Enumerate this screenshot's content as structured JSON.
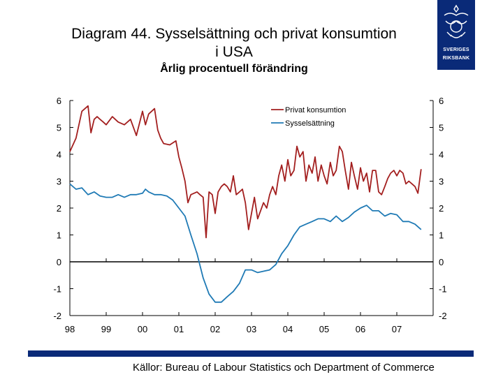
{
  "title_line1": "Diagram 44. Sysselsättning och privat konsumtion",
  "title_line2": "i USA",
  "subtitle": "Årlig procentuell förändring",
  "source": "Källor: Bureau of Labour Statistics och Department of Commerce",
  "logo": {
    "line1": "SVERIGES",
    "line2": "RIKSBANK",
    "color": "#0a2a78"
  },
  "chart_data": {
    "type": "line",
    "title": "Diagram 44. Sysselsättning och privat konsumtion i USA",
    "subtitle": "Årlig procentuell förändring",
    "xlabel": "",
    "ylabel": "",
    "xlim": [
      1998.0,
      2008.0
    ],
    "ylim": [
      -2,
      6
    ],
    "yticks": [
      6,
      5,
      4,
      3,
      2,
      1,
      0,
      -1,
      -2
    ],
    "ytick_labels": [
      "6",
      "5",
      "4",
      "3",
      "2",
      "1",
      "0",
      "-1",
      "-2"
    ],
    "xtick_labels": [
      "98",
      "99",
      "00",
      "01",
      "02",
      "03",
      "04",
      "05",
      "06",
      "07"
    ],
    "legend": {
      "position": "top-right"
    },
    "series": [
      {
        "name": "Privat konsumtion",
        "color": "#a31f1f",
        "x": [
          1998.0,
          1998.17,
          1998.33,
          1998.5,
          1998.58,
          1998.67,
          1998.75,
          1998.83,
          1998.92,
          1999.0,
          1999.17,
          1999.33,
          1999.5,
          1999.67,
          1999.83,
          2000.0,
          2000.08,
          2000.17,
          2000.33,
          2000.42,
          2000.5,
          2000.58,
          2000.75,
          2000.92,
          2001.0,
          2001.08,
          2001.17,
          2001.25,
          2001.33,
          2001.5,
          2001.58,
          2001.67,
          2001.75,
          2001.83,
          2001.92,
          2002.0,
          2002.08,
          2002.17,
          2002.25,
          2002.33,
          2002.42,
          2002.5,
          2002.58,
          2002.67,
          2002.75,
          2002.83,
          2002.92,
          2003.0,
          2003.08,
          2003.17,
          2003.25,
          2003.33,
          2003.42,
          2003.5,
          2003.58,
          2003.67,
          2003.75,
          2003.83,
          2003.92,
          2004.0,
          2004.08,
          2004.17,
          2004.25,
          2004.33,
          2004.42,
          2004.5,
          2004.58,
          2004.67,
          2004.75,
          2004.83,
          2004.92,
          2005.0,
          2005.08,
          2005.17,
          2005.25,
          2005.33,
          2005.42,
          2005.5,
          2005.58,
          2005.67,
          2005.75,
          2005.83,
          2005.92,
          2006.0,
          2006.08,
          2006.17,
          2006.25,
          2006.33,
          2006.42,
          2006.5,
          2006.58,
          2006.67,
          2006.75,
          2006.83,
          2006.92,
          2007.0,
          2007.08,
          2007.17,
          2007.25,
          2007.33,
          2007.42,
          2007.5,
          2007.58,
          2007.67
        ],
        "values": [
          4.1,
          4.6,
          5.6,
          5.8,
          4.8,
          5.3,
          5.4,
          5.3,
          5.2,
          5.1,
          5.4,
          5.2,
          5.1,
          5.3,
          4.7,
          5.6,
          5.1,
          5.5,
          5.7,
          4.9,
          4.6,
          4.4,
          4.35,
          4.5,
          3.9,
          3.5,
          3.0,
          2.2,
          2.5,
          2.6,
          2.5,
          2.4,
          0.9,
          2.6,
          2.5,
          1.8,
          2.6,
          2.8,
          2.9,
          2.8,
          2.6,
          3.2,
          2.5,
          2.6,
          2.7,
          2.2,
          1.2,
          1.8,
          2.4,
          1.6,
          1.9,
          2.2,
          2.0,
          2.5,
          2.8,
          2.5,
          3.2,
          3.6,
          3.0,
          3.8,
          3.2,
          3.4,
          4.3,
          3.9,
          4.1,
          3.0,
          3.6,
          3.3,
          3.9,
          3.0,
          3.6,
          3.2,
          2.9,
          3.7,
          3.2,
          3.4,
          4.3,
          4.1,
          3.4,
          2.7,
          3.7,
          3.2,
          2.7,
          3.5,
          3.0,
          3.3,
          2.6,
          3.4,
          3.4,
          2.6,
          2.5,
          2.8,
          3.1,
          3.3,
          3.4,
          3.2,
          3.4,
          3.3,
          2.9,
          3.0,
          2.9,
          2.8,
          2.55,
          3.45
        ]
      },
      {
        "name": "Sysselsättning",
        "color": "#1f7ab5",
        "x": [
          1998.0,
          1998.17,
          1998.33,
          1998.5,
          1998.67,
          1998.83,
          1999.0,
          1999.17,
          1999.33,
          1999.5,
          1999.67,
          1999.83,
          2000.0,
          2000.08,
          2000.17,
          2000.33,
          2000.5,
          2000.67,
          2000.83,
          2001.0,
          2001.17,
          2001.33,
          2001.5,
          2001.67,
          2001.83,
          2002.0,
          2002.17,
          2002.33,
          2002.5,
          2002.67,
          2002.83,
          2003.0,
          2003.17,
          2003.33,
          2003.5,
          2003.67,
          2003.83,
          2004.0,
          2004.17,
          2004.33,
          2004.5,
          2004.67,
          2004.83,
          2005.0,
          2005.17,
          2005.33,
          2005.5,
          2005.67,
          2005.83,
          2006.0,
          2006.17,
          2006.33,
          2006.5,
          2006.67,
          2006.83,
          2007.0,
          2007.17,
          2007.33,
          2007.5,
          2007.67
        ],
        "values": [
          2.9,
          2.7,
          2.75,
          2.5,
          2.6,
          2.45,
          2.4,
          2.4,
          2.5,
          2.4,
          2.5,
          2.5,
          2.55,
          2.7,
          2.6,
          2.5,
          2.5,
          2.45,
          2.3,
          2.0,
          1.7,
          1.0,
          0.3,
          -0.6,
          -1.2,
          -1.5,
          -1.5,
          -1.3,
          -1.1,
          -0.8,
          -0.3,
          -0.3,
          -0.4,
          -0.35,
          -0.3,
          -0.1,
          0.3,
          0.6,
          1.0,
          1.3,
          1.4,
          1.5,
          1.6,
          1.6,
          1.5,
          1.7,
          1.5,
          1.65,
          1.85,
          2.0,
          2.1,
          1.9,
          1.9,
          1.7,
          1.8,
          1.75,
          1.5,
          1.5,
          1.4,
          1.2
        ]
      }
    ]
  }
}
